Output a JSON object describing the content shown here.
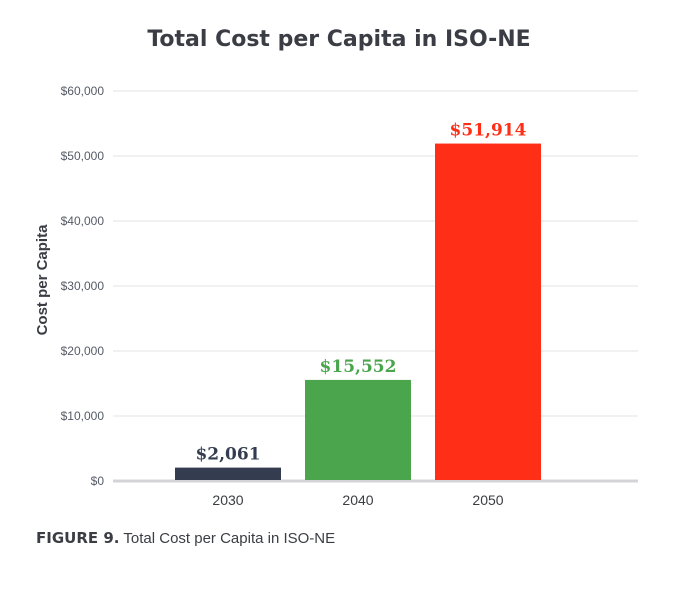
{
  "chart_data": {
    "type": "bar",
    "title": "Total Cost per Capita in ISO-NE",
    "xlabel": "",
    "ylabel": "Cost per Capita",
    "categories": [
      "2030",
      "2040",
      "2050"
    ],
    "values": [
      2061,
      15552,
      51914
    ],
    "data_labels": [
      "$2,061",
      "$15,552",
      "$51,914"
    ],
    "colors": [
      "#333d4f",
      "#4aa54d",
      "#ff2e17"
    ],
    "ylim": [
      0,
      60000
    ],
    "yticks": [
      0,
      10000,
      20000,
      30000,
      40000,
      50000,
      60000
    ],
    "ytick_labels": [
      "$0",
      "$10,000",
      "$20,000",
      "$30,000",
      "$40,000",
      "$50,000",
      "$60,000"
    ],
    "grid": true,
    "legend": "none"
  },
  "caption": {
    "label": "FIGURE 9.",
    "text": " Total Cost per Capita in ISO-NE"
  }
}
